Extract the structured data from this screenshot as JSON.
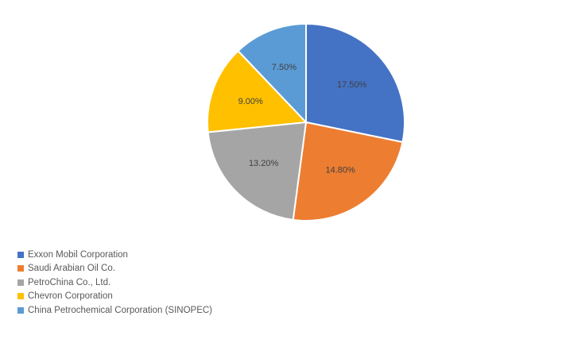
{
  "chart_data": {
    "type": "pie",
    "title": "",
    "legend_position": "bottom-left",
    "labels": [
      "Exxon Mobil Corporation",
      "Saudi Arabian Oil Co.",
      "PetroChina Co., Ltd.",
      "Chevron Corporation",
      "China Petrochemical Corporation (SINOPEC)"
    ],
    "values": [
      17.5,
      14.8,
      13.2,
      9.0,
      7.5
    ],
    "value_labels": [
      "17.50%",
      "14.80%",
      "13.20%",
      "9.00%",
      "7.50%"
    ],
    "colors": [
      "#4472C4",
      "#ED7D31",
      "#A5A5A5",
      "#FFC000",
      "#5B9BD5"
    ]
  }
}
